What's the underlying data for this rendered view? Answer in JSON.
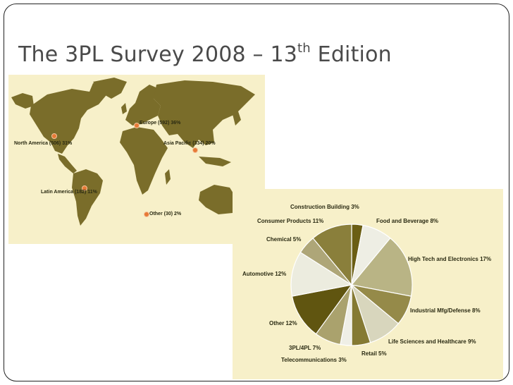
{
  "slide": {
    "title_prefix": "The 3PL Survey 2008 – 13",
    "title_sup": "th",
    "title_suffix": " Edition"
  },
  "map": {
    "land_color": "#7a6d2a",
    "background": "#f7f0c9",
    "marker_color": "#e77a36",
    "regions": [
      {
        "label": "North America (506) 31%"
      },
      {
        "label": "Europe (592) 36%"
      },
      {
        "label": "Asia Pacific (334) 20%"
      },
      {
        "label": "Latin America (182) 11%"
      },
      {
        "label": "Other (30) 2%"
      }
    ]
  },
  "chart_data": {
    "type": "pie",
    "slices": [
      {
        "label": "Construction Building 3%",
        "value": 3,
        "color": "#6b5e14"
      },
      {
        "label": "Food and Beverage 8%",
        "value": 8,
        "color": "#eeeee4"
      },
      {
        "label": "High Tech and Electronics 17%",
        "value": 17,
        "color": "#b9b485"
      },
      {
        "label": "Industrial Mfg/Defense  8%",
        "value": 8,
        "color": "#958a49"
      },
      {
        "label": "Life Sciences and Healthcare 9%",
        "value": 9,
        "color": "#d8d6bd"
      },
      {
        "label": "Retail 5%",
        "value": 5,
        "color": "#857a33"
      },
      {
        "label": "Telecommunications 3%",
        "value": 3,
        "color": "#efefe6"
      },
      {
        "label": "3PL/4PL 7%",
        "value": 7,
        "color": "#aaa26d"
      },
      {
        "label": "Other 12%",
        "value": 12,
        "color": "#605510"
      },
      {
        "label": "Automotive 12%",
        "value": 12,
        "color": "#ececdf"
      },
      {
        "label": "Chemical 5%",
        "value": 5,
        "color": "#aea678"
      },
      {
        "label": "Consumer Products 11%",
        "value": 11,
        "color": "#8a7f3b"
      }
    ]
  }
}
